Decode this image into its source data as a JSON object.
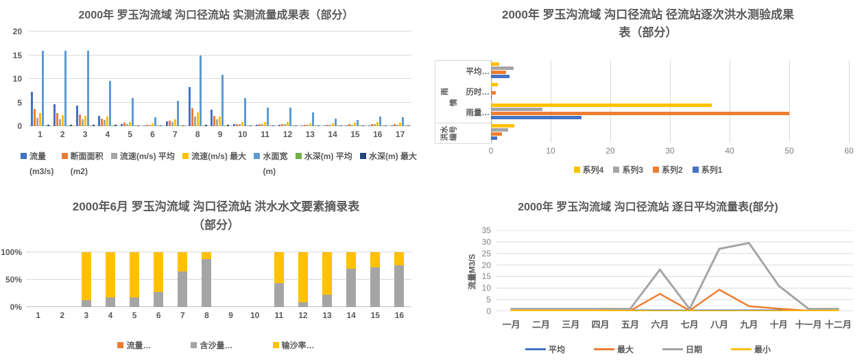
{
  "chart_data": [
    {
      "id": "measured-flow-results",
      "type": "bar",
      "title": "2000年 罗玉沟流域 沟口径流站 实测流量成果表（部分）",
      "categories": [
        "1",
        "2",
        "3",
        "4",
        "5",
        "6",
        "7",
        "8",
        "9",
        "10",
        "11",
        "12",
        "13",
        "14",
        "15",
        "16",
        "17"
      ],
      "ylim": [
        0,
        20
      ],
      "yticks": [
        0,
        5,
        10,
        15,
        20
      ],
      "legend_position": "bottom",
      "grid": true,
      "series": [
        {
          "name": "流量",
          "unit": "(m3/s)",
          "color": "#4472C4",
          "values": [
            7.2,
            4.6,
            4.4,
            2.2,
            0.5,
            0.15,
            1.0,
            8.3,
            3.5,
            0.4,
            0.35,
            0.35,
            0.15,
            0.15,
            0.1,
            0.1,
            0.08
          ]
        },
        {
          "name": "断面面积",
          "unit": "(m2)",
          "color": "#ED7D31",
          "values": [
            3.6,
            2.7,
            2.4,
            1.6,
            0.75,
            0.25,
            1.2,
            3.8,
            2.2,
            0.5,
            0.45,
            0.5,
            0.3,
            0.25,
            0.4,
            0.4,
            0.4
          ]
        },
        {
          "name": "流速(m/s) 平均",
          "unit": "",
          "color": "#A5A5A5",
          "values": [
            1.8,
            1.5,
            1.4,
            1.3,
            0.5,
            0.35,
            0.9,
            2.0,
            1.4,
            0.45,
            0.45,
            0.45,
            0.35,
            0.3,
            0.35,
            0.4,
            0.35
          ]
        },
        {
          "name": "流速(m/s) 最大",
          "unit": "",
          "color": "#FFC000",
          "values": [
            2.8,
            2.3,
            2.2,
            2.0,
            0.85,
            0.6,
            1.4,
            2.9,
            2.0,
            0.8,
            0.8,
            0.8,
            0.6,
            0.6,
            0.7,
            0.8,
            0.75
          ]
        },
        {
          "name": "水面宽",
          "unit": "(m)",
          "color": "#5B9BD5",
          "values": [
            16,
            16,
            16,
            9.5,
            5.9,
            1.9,
            5.4,
            15,
            10.9,
            5.9,
            3.9,
            3.9,
            2.9,
            1.6,
            1.3,
            2.0,
            1.9
          ]
        },
        {
          "name": "水深(m) 平均",
          "unit": "",
          "color": "#70AD47",
          "values": [
            0.06,
            0.06,
            0.06,
            0.05,
            0.04,
            0.03,
            0.05,
            0.06,
            0.05,
            0.04,
            0.04,
            0.04,
            0.03,
            0.03,
            0.03,
            0.03,
            0.03
          ]
        },
        {
          "name": "水深(m) 最大",
          "unit": "",
          "color": "#264478",
          "values": [
            0.3,
            0.3,
            0.3,
            0.25,
            0.15,
            0.1,
            0.2,
            0.3,
            0.25,
            0.15,
            0.15,
            0.15,
            0.1,
            0.1,
            0.1,
            0.12,
            0.12
          ]
        }
      ]
    },
    {
      "id": "flood-test-results",
      "type": "bar-horizontal",
      "title": "2000年 罗玉沟流域 沟口径流站 径流站逐次洪水测验成果表（部分）",
      "title_lines": [
        "2000年 罗玉沟流域 沟口径流站 径流站逐次洪水测验成果",
        "表（部分）"
      ],
      "categories": [
        "平均…",
        "历时…",
        "雨量…",
        "洪水编号"
      ],
      "axis_groups": [
        {
          "label": "雨情",
          "rows": 3,
          "inner_labels": true
        },
        {
          "label": "洪水编号",
          "rows": 1,
          "inner_labels": false
        }
      ],
      "xlim": [
        0,
        60
      ],
      "xticks": [
        0,
        10,
        20,
        30,
        40,
        50,
        60
      ],
      "legend_position": "bottom",
      "grid": true,
      "series": [
        {
          "name": "系列4",
          "color": "#FFC000",
          "values": [
            1.4,
            1.2,
            37,
            3.9
          ]
        },
        {
          "name": "系列3",
          "color": "#A5A5A5",
          "values": [
            3.8,
            0.1,
            8.6,
            2.9
          ]
        },
        {
          "name": "系列2",
          "color": "#ED7D31",
          "values": [
            2.5,
            0.8,
            50,
            1.8
          ]
        },
        {
          "name": "系列1",
          "color": "#4472C4",
          "values": [
            3.1,
            0.1,
            15.2,
            1.0
          ]
        }
      ]
    },
    {
      "id": "flood-hydrologic-elements",
      "type": "stacked-bar-100",
      "title": "2000年6月 罗玉沟流域 沟口径流站 洪水水文要素摘录表（部分）",
      "title_lines": [
        "2000年6月 罗玉沟流域 沟口径流站 洪水水文要素摘录表",
        "（部分）"
      ],
      "categories": [
        "1",
        "2",
        "3",
        "4",
        "5",
        "6",
        "7",
        "8",
        "9",
        "10",
        "11",
        "12",
        "13",
        "14",
        "15",
        "16"
      ],
      "yticks": [
        0,
        50,
        100
      ],
      "ytick_labels": [
        "0%",
        "50%",
        "100%"
      ],
      "legend_position": "bottom",
      "grid": true,
      "series": [
        {
          "name": "流量…",
          "color": "#ED7D31",
          "values": [
            0,
            0,
            0,
            0,
            0,
            0,
            0,
            0,
            0,
            0,
            0,
            0,
            0,
            0,
            0,
            0
          ]
        },
        {
          "name": "含沙量…",
          "color": "#A5A5A5",
          "values": [
            0,
            0,
            12,
            17,
            18,
            28,
            65,
            87,
            0,
            0,
            44,
            9,
            22,
            70,
            73,
            76
          ]
        },
        {
          "name": "输沙率…",
          "color": "#FFC000",
          "values": [
            0,
            0,
            88,
            83,
            82,
            72,
            35,
            13,
            0,
            0,
            56,
            91,
            78,
            30,
            27,
            24
          ]
        }
      ]
    },
    {
      "id": "daily-average-flow",
      "type": "line",
      "title": "2000年 罗玉沟流域 沟口径流站 逐日平均流量表(部分)",
      "ylabel": "流量M3/S",
      "ylim": [
        0,
        35
      ],
      "yticks": [
        0,
        5,
        10,
        15,
        20,
        25,
        30,
        35
      ],
      "categories": [
        "一月",
        "二月",
        "三月",
        "四月",
        "五月",
        "六月",
        "七月",
        "八月",
        "九月",
        "十月",
        "十一月",
        "十二月"
      ],
      "legend_position": "bottom",
      "grid": true,
      "series": [
        {
          "name": "平均",
          "color": "#4472C4",
          "values": [
            0.4,
            0.4,
            0.4,
            0.4,
            0.4,
            0.4,
            0.3,
            0.4,
            0.4,
            0.4,
            0.3,
            0.4
          ]
        },
        {
          "name": "最大",
          "color": "#ED7D31",
          "values": [
            0.9,
            0.9,
            0.9,
            0.9,
            0.2,
            7.5,
            0.3,
            9.3,
            2.2,
            1.1,
            0.2,
            0.8
          ]
        },
        {
          "name": "日期",
          "color": "#A5A5A5",
          "values": [
            1,
            1,
            1,
            1,
            1,
            18,
            1,
            27,
            29.5,
            11,
            1,
            1
          ]
        },
        {
          "name": "最小",
          "color": "#FFC000",
          "values": [
            0.3,
            0.3,
            0.3,
            0.3,
            0.15,
            0.1,
            0.1,
            0.1,
            0.1,
            0.1,
            0.15,
            0.3
          ]
        }
      ]
    }
  ],
  "theme": {
    "text_color": "#595959",
    "gridline_color": "#D9D9D9",
    "axis_color": "#BFBFBF",
    "background": "#FFFFFF"
  }
}
